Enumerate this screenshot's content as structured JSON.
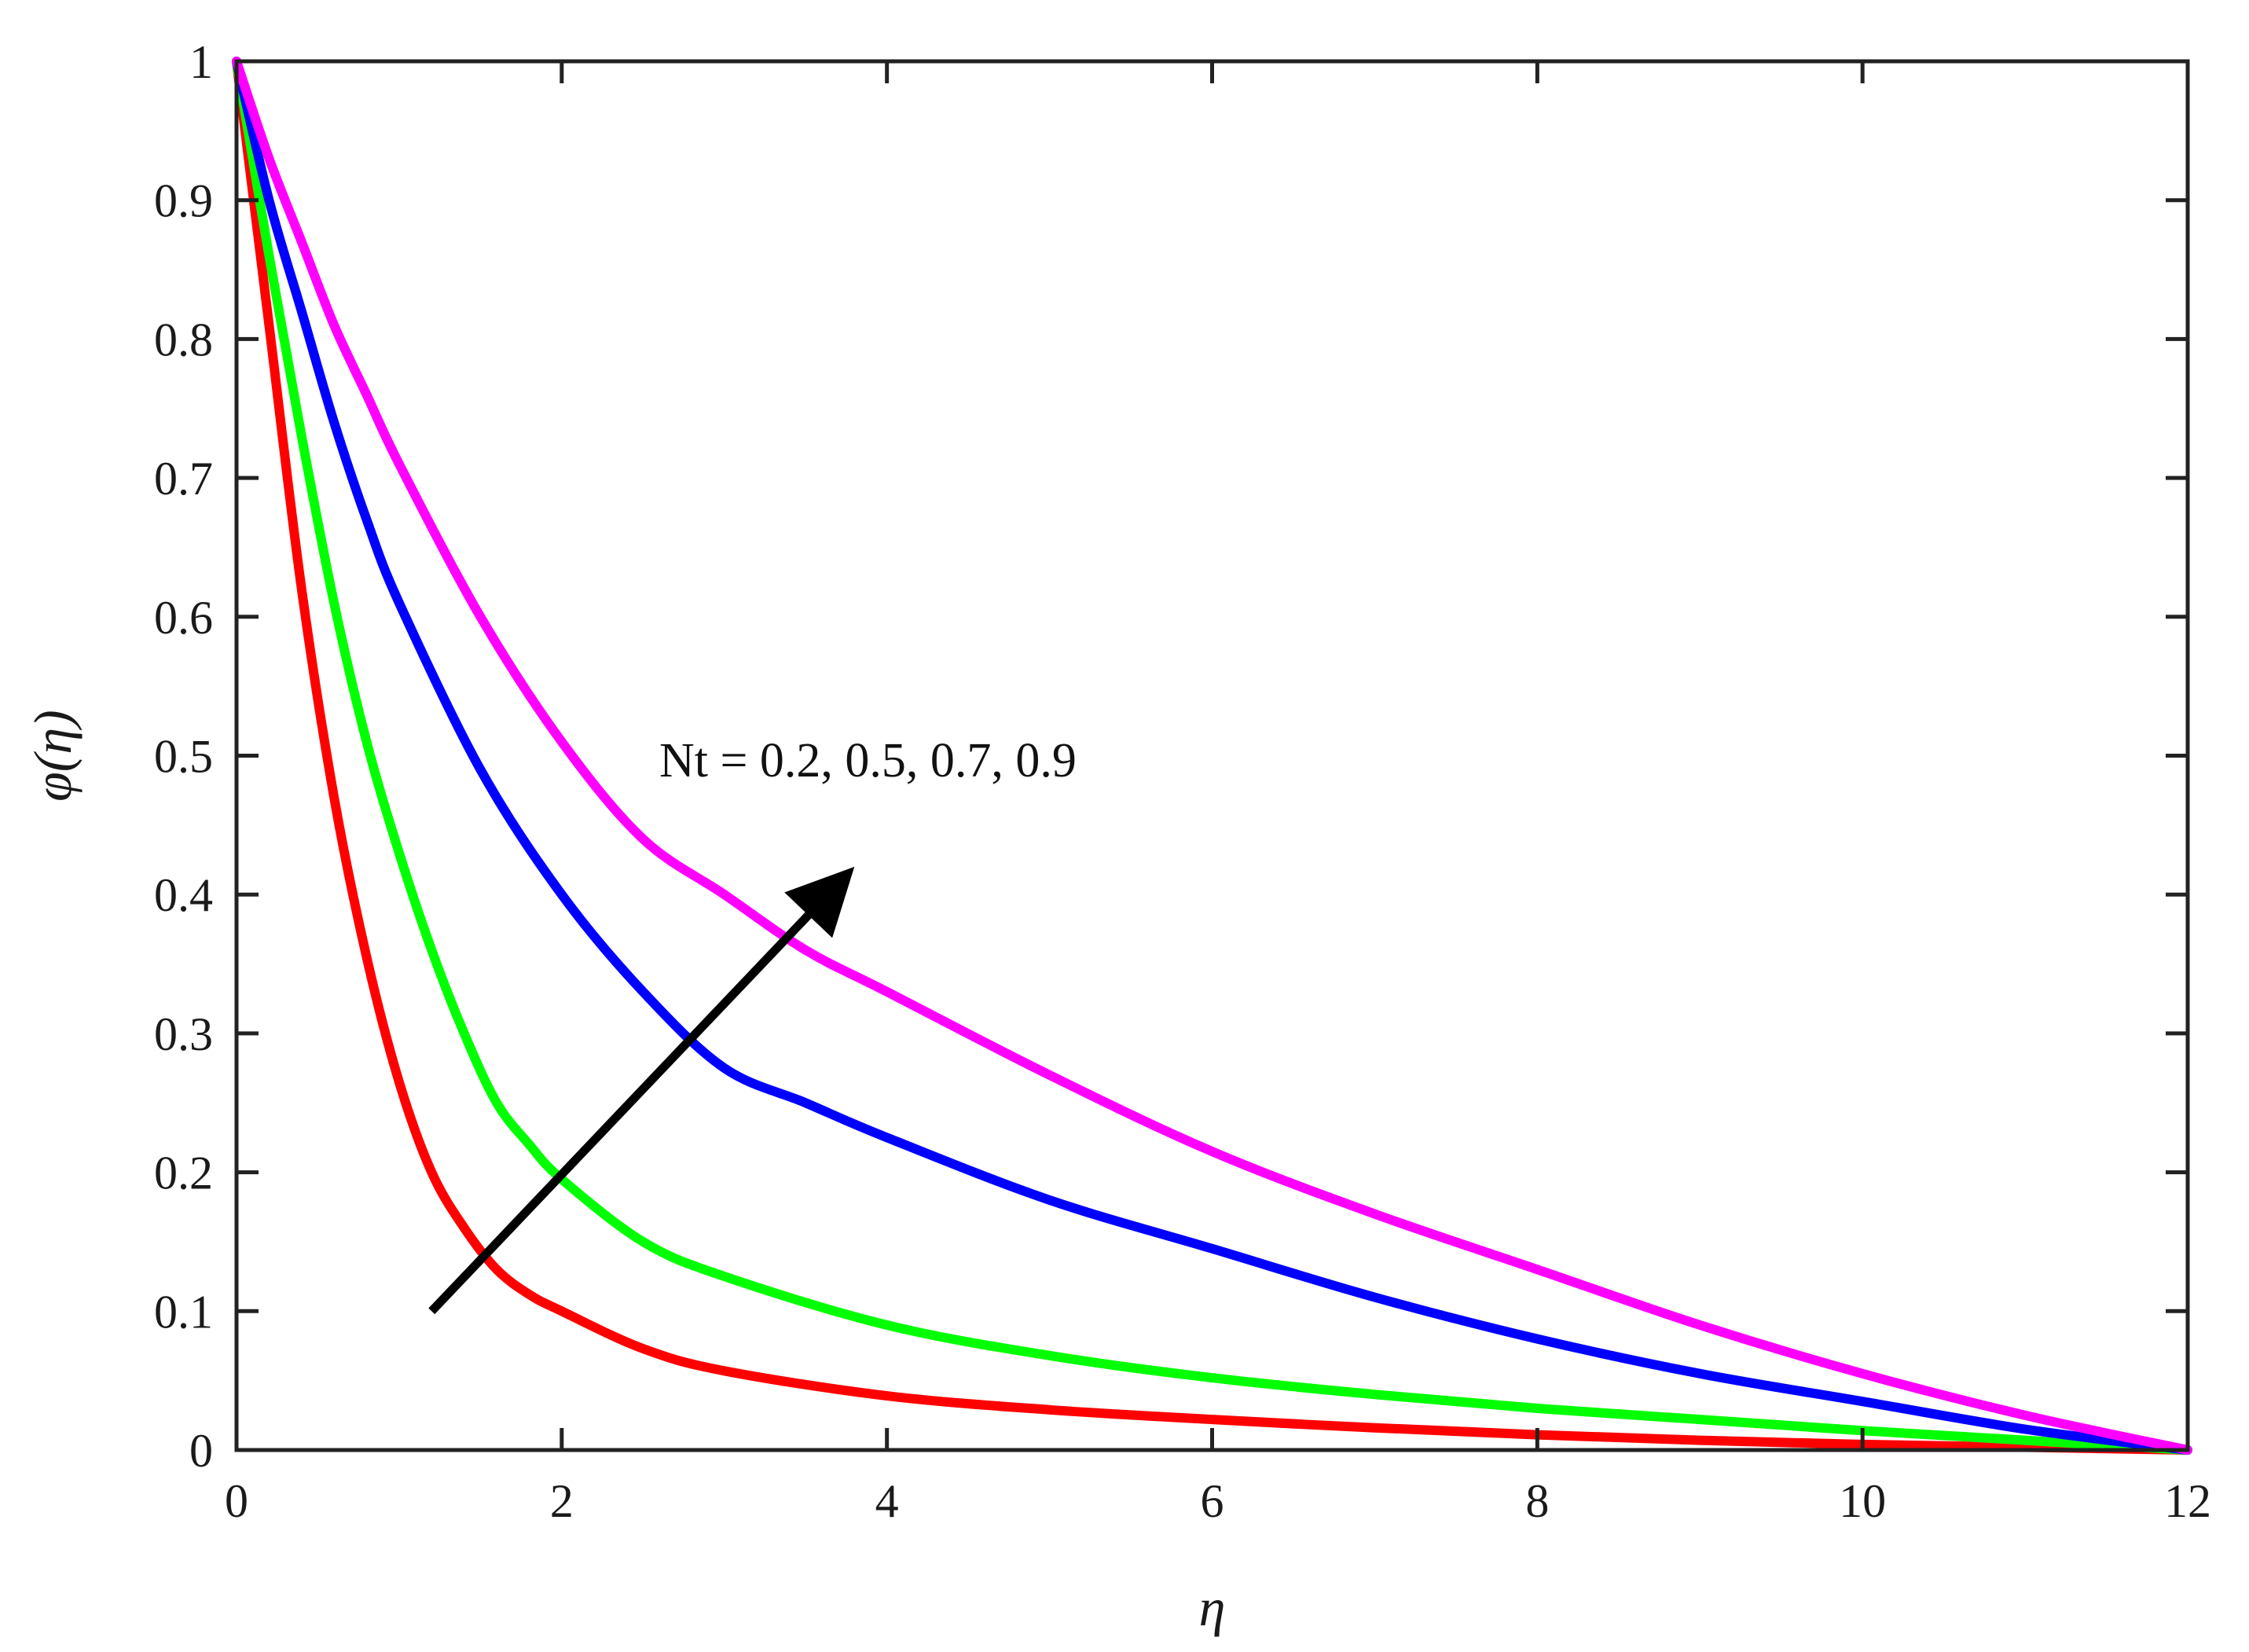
{
  "chart_data": {
    "type": "line",
    "title": "",
    "xlabel": "η",
    "ylabel": "φ(η)",
    "xlim": [
      0,
      12
    ],
    "ylim": [
      0,
      1
    ],
    "xticks": [
      0,
      2,
      4,
      6,
      8,
      10,
      12
    ],
    "yticks": [
      0,
      0.1,
      0.2,
      0.3,
      0.4,
      0.5,
      0.6,
      0.7,
      0.8,
      0.9,
      1
    ],
    "xtick_labels": [
      "0",
      "2",
      "4",
      "6",
      "8",
      "10",
      "12"
    ],
    "ytick_labels": [
      "0",
      "0.1",
      "0.2",
      "0.3",
      "0.4",
      "0.5",
      "0.6",
      "0.7",
      "0.8",
      "0.9",
      "1"
    ],
    "grid": false,
    "legend": false,
    "annotation": {
      "text": "Nt = 0.2, 0.5, 0.7, 0.9",
      "arrow_from": [
        1.2,
        0.1
      ],
      "arrow_to": [
        3.8,
        0.42
      ]
    },
    "series": [
      {
        "color": "#ff0000",
        "x": [
          0,
          0.2,
          0.4,
          0.6,
          0.8,
          1.0,
          1.2,
          1.4,
          1.6,
          1.8,
          2.0,
          2.5,
          3.0,
          4.0,
          5.0,
          6.0,
          7.0,
          8.0,
          9.0,
          10.0,
          11.0,
          12.0
        ],
        "y": [
          1.0,
          0.81,
          0.62,
          0.47,
          0.355,
          0.265,
          0.2,
          0.16,
          0.13,
          0.112,
          0.1,
          0.073,
          0.057,
          0.039,
          0.029,
          0.022,
          0.016,
          0.011,
          0.007,
          0.004,
          0.002,
          0.0
        ]
      },
      {
        "color": "#00ff00",
        "x": [
          0,
          0.2,
          0.4,
          0.6,
          0.8,
          1.0,
          1.2,
          1.4,
          1.6,
          1.8,
          2.0,
          2.5,
          3.0,
          4.0,
          5.0,
          6.0,
          7.0,
          8.0,
          9.0,
          10.0,
          11.0,
          12.0
        ],
        "y": [
          1.0,
          0.86,
          0.73,
          0.61,
          0.51,
          0.43,
          0.36,
          0.3,
          0.25,
          0.22,
          0.195,
          0.15,
          0.125,
          0.09,
          0.068,
          0.052,
          0.04,
          0.03,
          0.022,
          0.014,
          0.007,
          0.0
        ]
      },
      {
        "color": "#0000ff",
        "x": [
          0,
          0.2,
          0.4,
          0.6,
          0.8,
          1.0,
          1.5,
          2.0,
          2.5,
          3.0,
          3.5,
          4.0,
          5.0,
          6.0,
          7.0,
          8.0,
          9.0,
          10.0,
          11.0,
          12.0
        ],
        "y": [
          1.0,
          0.9,
          0.82,
          0.74,
          0.67,
          0.61,
          0.49,
          0.4,
          0.33,
          0.275,
          0.25,
          0.225,
          0.18,
          0.145,
          0.11,
          0.08,
          0.055,
          0.035,
          0.015,
          0.0
        ]
      },
      {
        "color": "#ff00ff",
        "x": [
          0,
          0.2,
          0.4,
          0.6,
          0.8,
          1.0,
          1.5,
          2.0,
          2.5,
          3.0,
          3.5,
          4.0,
          5.0,
          6.0,
          7.0,
          8.0,
          9.0,
          10.0,
          11.0,
          12.0
        ],
        "y": [
          1.0,
          0.93,
          0.87,
          0.81,
          0.76,
          0.71,
          0.6,
          0.51,
          0.44,
          0.4,
          0.36,
          0.33,
          0.27,
          0.215,
          0.17,
          0.13,
          0.09,
          0.055,
          0.025,
          0.0
        ]
      }
    ]
  }
}
